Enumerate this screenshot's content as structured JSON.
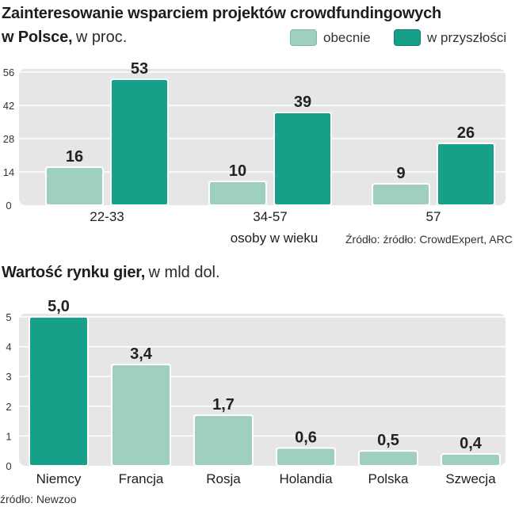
{
  "colors": {
    "light": "#9fcfc0",
    "dark": "#16a08a",
    "panel": "#e6e6e6",
    "grid": "#ffffff"
  },
  "chart_data": [
    {
      "type": "bar",
      "title_bold_line1": "Zainteresowanie wsparciem projektów  crowdfundingowych",
      "title_bold_line2": "w Polsce,",
      "title_unit": "w proc.",
      "categories": [
        "22-33",
        "34-57",
        "57"
      ],
      "xlabel": "osoby w wieku",
      "series": [
        {
          "name": "obecnie",
          "values": [
            16,
            10,
            9
          ]
        },
        {
          "name": "w przyszłości",
          "values": [
            53,
            39,
            26
          ]
        }
      ],
      "ylim": [
        0,
        56
      ],
      "yticks": [
        0,
        14,
        28,
        42,
        56
      ],
      "legend": "top-right",
      "source": "Źródło: źródło: CrowdExpert, ARC"
    },
    {
      "type": "bar",
      "title_bold": "Wartość rynku gier,",
      "title_unit": "w mld dol.",
      "categories": [
        "Niemcy",
        "Francja",
        "Rosja",
        "Holandia",
        "Polska",
        "Szwecja"
      ],
      "values": [
        5.0,
        3.4,
        1.7,
        0.6,
        0.5,
        0.4
      ],
      "value_labels": [
        "5,0",
        "3,4",
        "1,7",
        "0,6",
        "0,5",
        "0,4"
      ],
      "ylim": [
        0,
        5
      ],
      "yticks": [
        0,
        1,
        2,
        3,
        4,
        5
      ],
      "highlight_index": 0,
      "source": "źródło: Newzoo"
    }
  ]
}
